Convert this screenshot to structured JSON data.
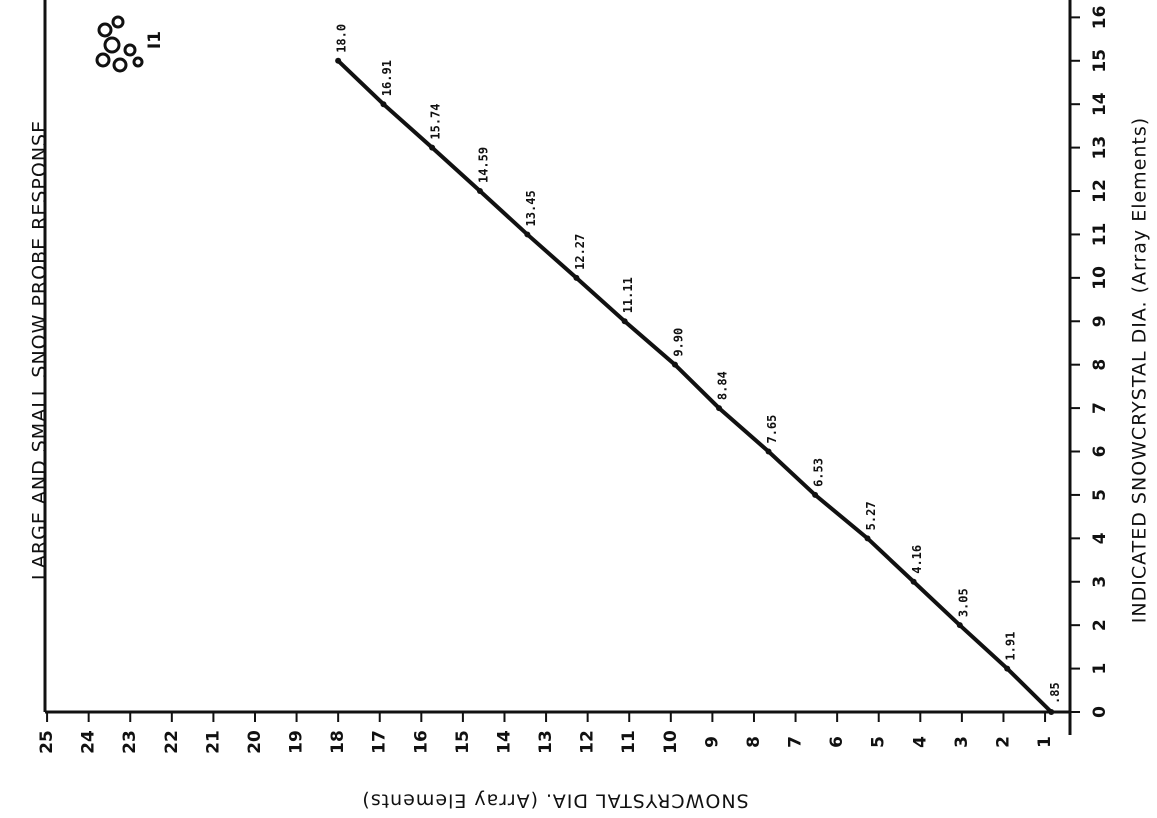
{
  "chart_data": {
    "type": "line",
    "title": "LARGE AND SMALL SNOW PROBE RESPONSE",
    "x_label": "INDICATED SNOWCRYSTAL DIA. (Array Elements)",
    "y_label": "SNOWCRYSTAL DIA. (Array Elements)",
    "annotation": "I1",
    "x": [
      0,
      1,
      2,
      3,
      4,
      5,
      6,
      7,
      8,
      9,
      10,
      11,
      12,
      13,
      14,
      15
    ],
    "values": [
      0.85,
      1.91,
      3.05,
      4.16,
      5.27,
      6.53,
      7.65,
      8.84,
      9.9,
      11.11,
      12.27,
      13.45,
      14.59,
      15.74,
      16.91,
      18.0
    ],
    "value_labels": [
      ".85",
      "1.91",
      "3.05",
      "4.16",
      "5.27",
      "6.53",
      "7.65",
      "8.84",
      "9.90",
      "11.11",
      "12.27",
      "13.45",
      "14.59",
      "15.74",
      "16.91",
      "18.0"
    ],
    "color": "#111111",
    "xlim": [
      0,
      16.4
    ],
    "xticks": [
      0,
      1,
      2,
      3,
      4,
      5,
      6,
      7,
      8,
      9,
      10,
      11,
      12,
      13,
      14,
      15,
      16
    ],
    "ylim": [
      0.4,
      25.05
    ],
    "yticks": [
      1,
      2,
      3,
      4,
      5,
      6,
      7,
      8,
      9,
      10,
      11,
      12,
      13,
      14,
      15,
      16,
      17,
      18,
      19,
      20,
      21,
      22,
      23,
      24,
      25
    ]
  }
}
